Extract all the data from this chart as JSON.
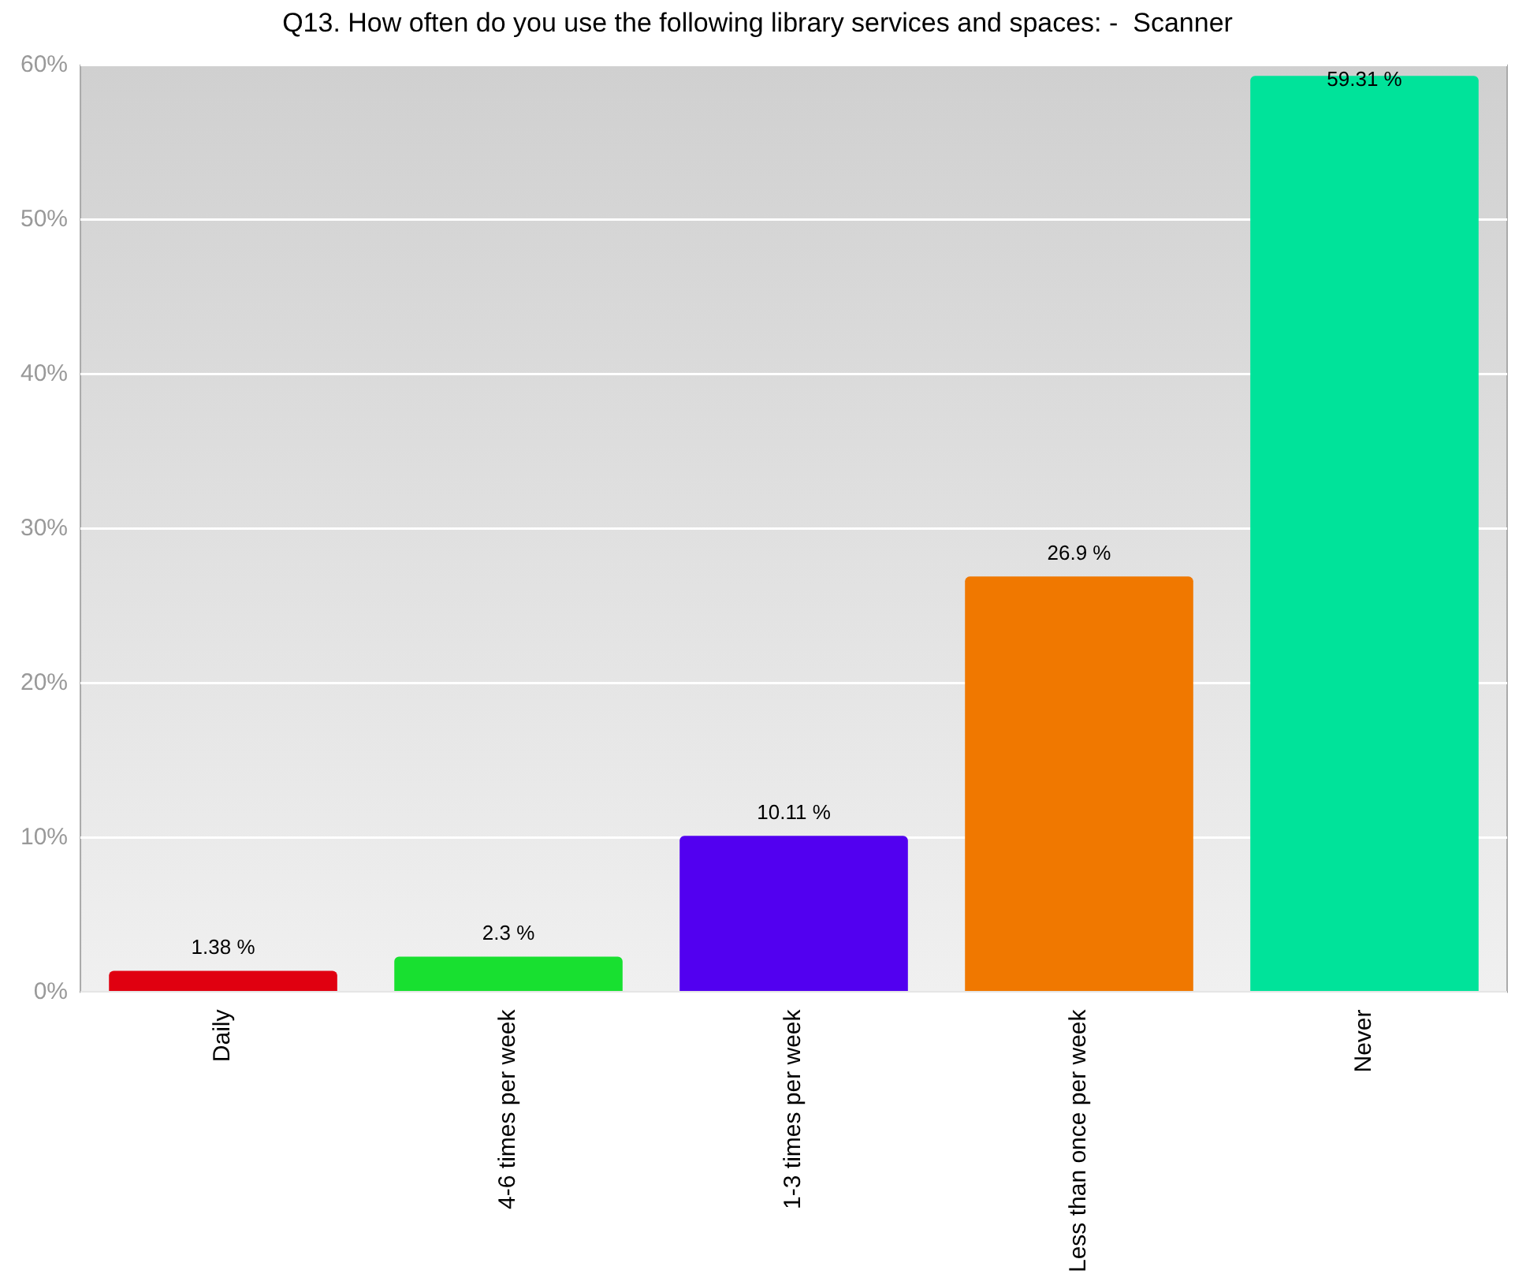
{
  "chart_data": {
    "type": "bar",
    "title": "Q13. How often do you use the following library services and spaces: -  Scanner",
    "categories": [
      "Daily",
      "4-6 times per week",
      "1-3 times per week",
      "Less than once per week",
      "Never"
    ],
    "values": [
      1.38,
      2.3,
      10.11,
      26.9,
      59.31
    ],
    "colors": [
      "#e00010",
      "#18e030",
      "#5200f0",
      "#f07800",
      "#00e39a"
    ],
    "value_labels": [
      "1.38 %",
      "2.3 %",
      "10.11 %",
      "26.9 %",
      "59.31 %"
    ],
    "ylim": [
      0,
      60
    ],
    "yticks": [
      {
        "value": 0,
        "label": "0%"
      },
      {
        "value": 10,
        "label": "10%"
      },
      {
        "value": 20,
        "label": "20%"
      },
      {
        "value": 30,
        "label": "30%"
      },
      {
        "value": 40,
        "label": "40%"
      },
      {
        "value": 50,
        "label": "50%"
      },
      {
        "value": 60,
        "label": "60%"
      }
    ],
    "grid": "y",
    "legend": false
  }
}
